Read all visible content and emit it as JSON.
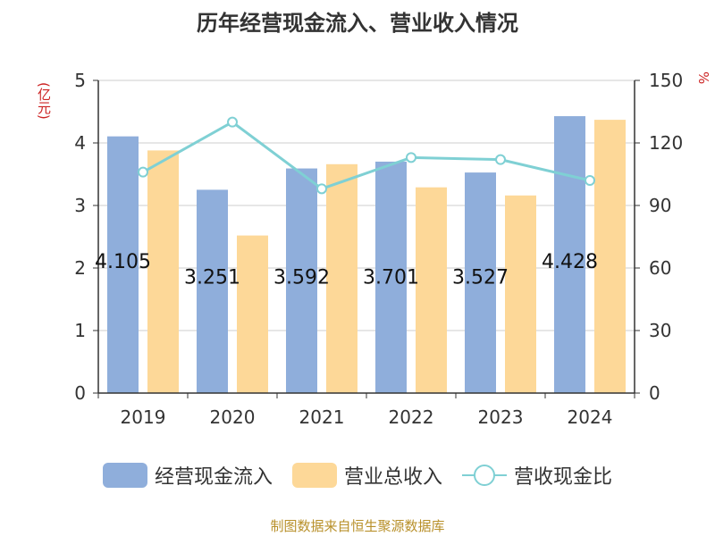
{
  "colors": {
    "operating_cash_inflow": "#8faedb",
    "total_revenue": "#fdd898",
    "cash_revenue_ratio": "#7fd0d4",
    "unit_text": "#cc2222",
    "source_text": "#b8902a"
  },
  "chart_data": {
    "type": "bar",
    "title": "历年经营现金流入、营业收入情况",
    "y_left_unit": "(亿元)",
    "y_right_unit": "%",
    "categories": [
      "2019",
      "2020",
      "2021",
      "2022",
      "2023",
      "2024"
    ],
    "ylim_left": [
      0,
      5
    ],
    "yticks_left": [
      "0",
      "1",
      "2",
      "3",
      "4",
      "5"
    ],
    "ylim_right": [
      0,
      150
    ],
    "yticks_right": [
      "0",
      "30",
      "60",
      "90",
      "120",
      "150"
    ],
    "grid": true,
    "legend_position": "bottom",
    "series": [
      {
        "name": "经营现金流入",
        "type": "bar",
        "axis": "left",
        "values": [
          4.105,
          3.251,
          3.592,
          3.701,
          3.527,
          4.428
        ],
        "labels": [
          "4.105",
          "3.251",
          "3.592",
          "3.701",
          "3.527",
          "4.428"
        ]
      },
      {
        "name": "营业总收入",
        "type": "bar",
        "axis": "left",
        "values": [
          3.88,
          2.52,
          3.66,
          3.29,
          3.16,
          4.37
        ]
      },
      {
        "name": "营收现金比",
        "type": "line",
        "axis": "right",
        "values": [
          106,
          130,
          98,
          113,
          112,
          102
        ]
      }
    ]
  },
  "source": "制图数据来自恒生聚源数据库"
}
